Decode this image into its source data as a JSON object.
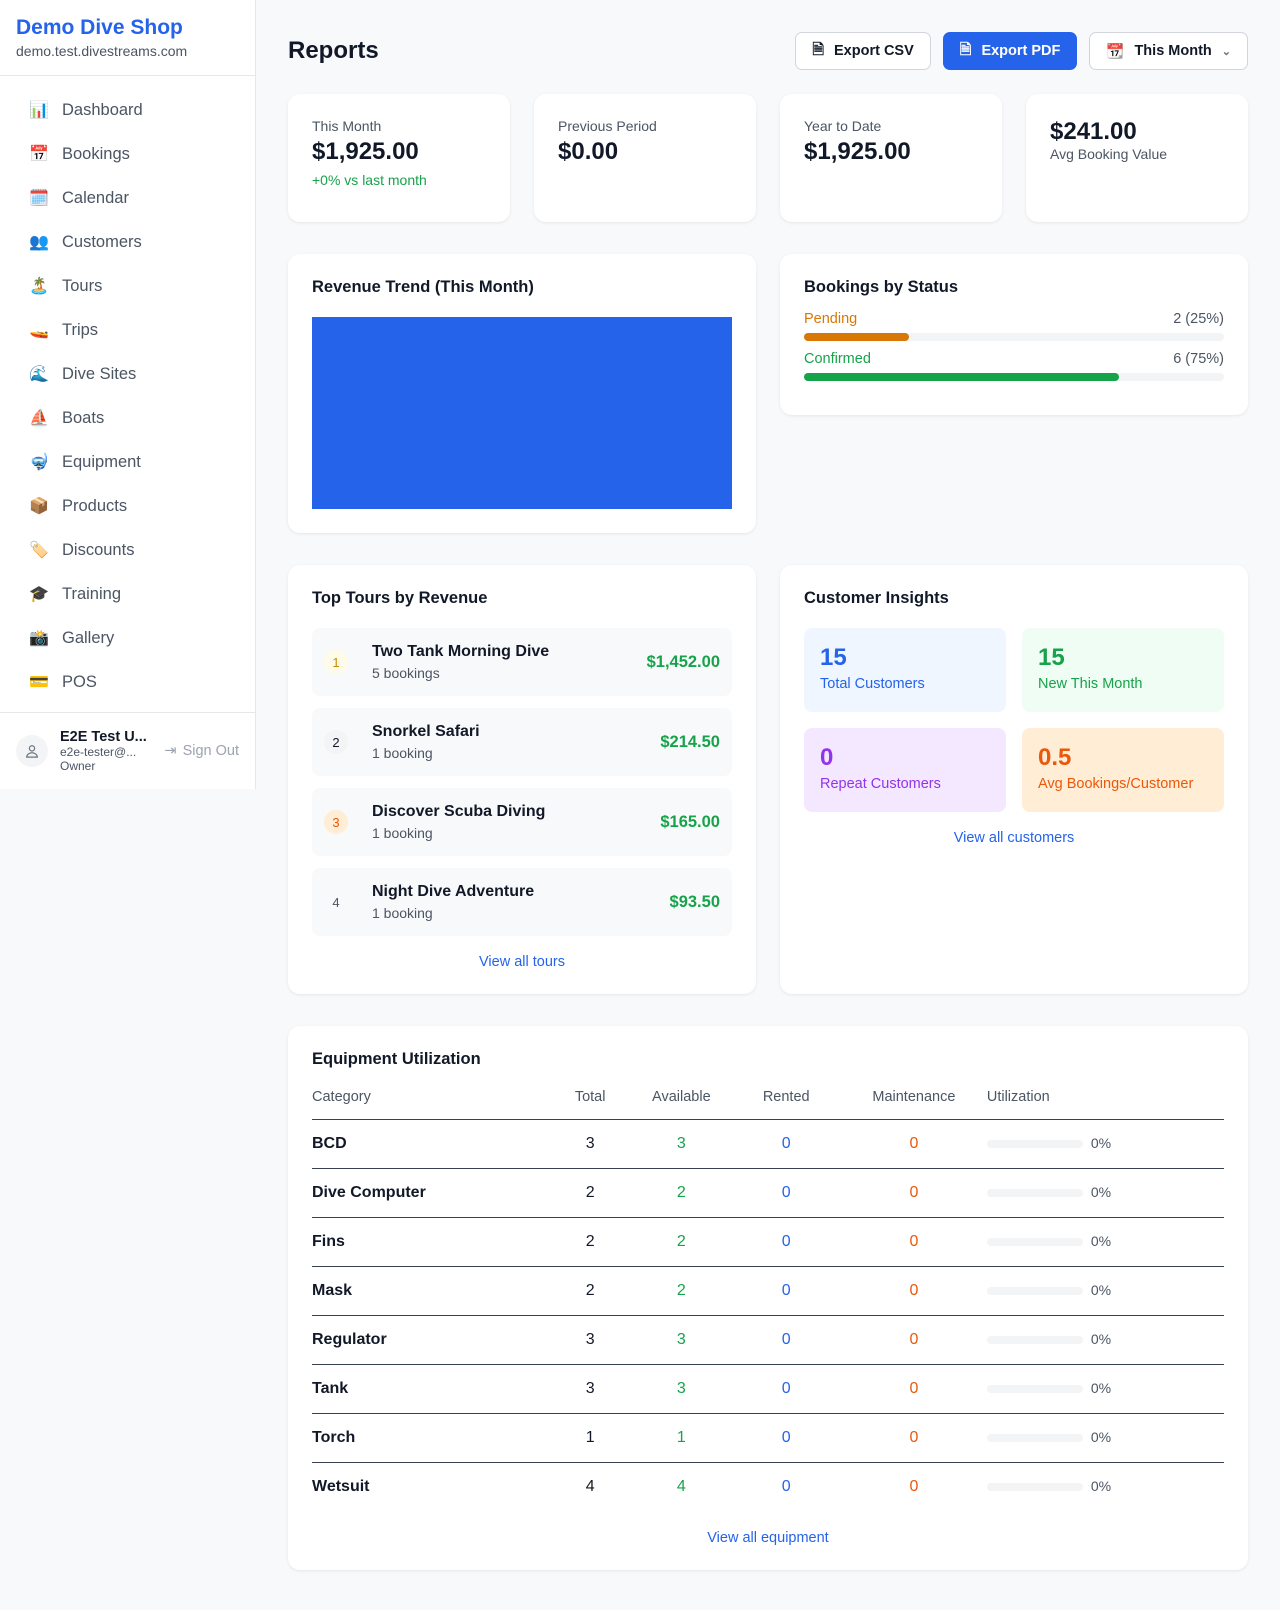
{
  "shop": {
    "name": "Demo Dive Shop",
    "domain": "demo.test.divestreams.com"
  },
  "nav": [
    {
      "icon": "📊",
      "label": "Dashboard"
    },
    {
      "icon": "📅",
      "label": "Bookings"
    },
    {
      "icon": "🗓️",
      "label": "Calendar"
    },
    {
      "icon": "👥",
      "label": "Customers"
    },
    {
      "icon": "🏝️",
      "label": "Tours"
    },
    {
      "icon": "🚤",
      "label": "Trips"
    },
    {
      "icon": "🌊",
      "label": "Dive Sites"
    },
    {
      "icon": "⛵",
      "label": "Boats"
    },
    {
      "icon": "🤿",
      "label": "Equipment"
    },
    {
      "icon": "📦",
      "label": "Products"
    },
    {
      "icon": "🏷️",
      "label": "Discounts"
    },
    {
      "icon": "🎓",
      "label": "Training"
    },
    {
      "icon": "📸",
      "label": "Gallery"
    },
    {
      "icon": "💳",
      "label": "POS"
    }
  ],
  "user": {
    "name": "E2E Test U...",
    "email": "e2e-tester@...",
    "role": "Owner",
    "sign_out": "Sign Out"
  },
  "header": {
    "title": "Reports",
    "export_csv": "Export CSV",
    "export_pdf": "Export PDF",
    "period": "This Month"
  },
  "stats": [
    {
      "label": "This Month",
      "value": "$1,925.00",
      "sub": "+0% vs last month"
    },
    {
      "label": "Previous Period",
      "value": "$0.00"
    },
    {
      "label": "Year to Date",
      "value": "$1,925.00"
    },
    {
      "value": "$241.00",
      "label": "Avg Booking Value"
    }
  ],
  "revenue": {
    "title": "Revenue Trend (This Month)",
    "color": "#2563eb"
  },
  "status": {
    "title": "Bookings by Status",
    "items": [
      {
        "label": "Pending",
        "count": "2 (25%)",
        "percent": 25,
        "color": "#d97706"
      },
      {
        "label": "Confirmed",
        "count": "6 (75%)",
        "percent": 75,
        "color": "#16a34a"
      }
    ]
  },
  "tours": {
    "title": "Top Tours by Revenue",
    "link": "View all tours",
    "items": [
      {
        "rank": "1",
        "name": "Two Tank Morning Dive",
        "bookings": "5 bookings",
        "revenue": "$1,452.00"
      },
      {
        "rank": "2",
        "name": "Snorkel Safari",
        "bookings": "1 booking",
        "revenue": "$214.50"
      },
      {
        "rank": "3",
        "name": "Discover Scuba Diving",
        "bookings": "1 booking",
        "revenue": "$165.00"
      },
      {
        "rank": "4",
        "name": "Night Dive Adventure",
        "bookings": "1 booking",
        "revenue": "$93.50"
      }
    ]
  },
  "insights": {
    "title": "Customer Insights",
    "link": "View all customers",
    "items": [
      {
        "value": "15",
        "label": "Total Customers"
      },
      {
        "value": "15",
        "label": "New This Month"
      },
      {
        "value": "0",
        "label": "Repeat Customers"
      },
      {
        "value": "0.5",
        "label": "Avg Bookings/Customer"
      }
    ]
  },
  "equipment": {
    "title": "Equipment Utilization",
    "link": "View all equipment",
    "columns": [
      "Category",
      "Total",
      "Available",
      "Rented",
      "Maintenance",
      "Utilization"
    ],
    "rows": [
      {
        "category": "BCD",
        "total": "3",
        "available": "3",
        "rented": "0",
        "maintenance": "0",
        "utilization": "0%"
      },
      {
        "category": "Dive Computer",
        "total": "2",
        "available": "2",
        "rented": "0",
        "maintenance": "0",
        "utilization": "0%"
      },
      {
        "category": "Fins",
        "total": "2",
        "available": "2",
        "rented": "0",
        "maintenance": "0",
        "utilization": "0%"
      },
      {
        "category": "Mask",
        "total": "2",
        "available": "2",
        "rented": "0",
        "maintenance": "0",
        "utilization": "0%"
      },
      {
        "category": "Regulator",
        "total": "3",
        "available": "3",
        "rented": "0",
        "maintenance": "0",
        "utilization": "0%"
      },
      {
        "category": "Tank",
        "total": "3",
        "available": "3",
        "rented": "0",
        "maintenance": "0",
        "utilization": "0%"
      },
      {
        "category": "Torch",
        "total": "1",
        "available": "1",
        "rented": "0",
        "maintenance": "0",
        "utilization": "0%"
      },
      {
        "category": "Wetsuit",
        "total": "4",
        "available": "4",
        "rented": "0",
        "maintenance": "0",
        "utilization": "0%"
      }
    ]
  }
}
